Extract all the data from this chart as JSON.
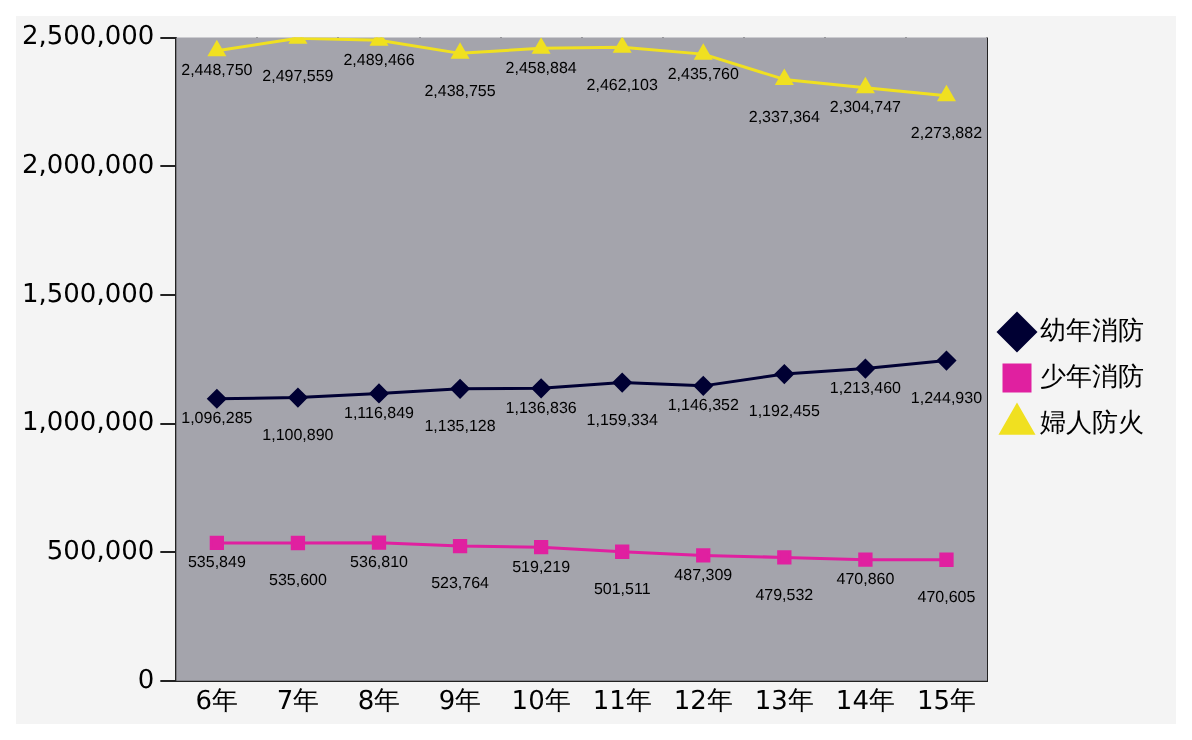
{
  "chart_data": {
    "type": "line",
    "categories": [
      "6年",
      "7年",
      "8年",
      "9年",
      "10年",
      "11年",
      "12年",
      "13年",
      "14年",
      "15年"
    ],
    "series": [
      {
        "name": "幼年消防",
        "color": "#000033",
        "marker": "diamond",
        "values": [
          1096285,
          1100890,
          1116849,
          1135128,
          1136836,
          1159334,
          1146352,
          1192455,
          1213460,
          1244930
        ],
        "value_labels": [
          "1,096,285",
          "1,100,890",
          "1,116,849",
          "1,135,128",
          "1,136,836",
          "1,159,334",
          "1,146,352",
          "1,192,455",
          "1,213,460",
          "1,244,930"
        ]
      },
      {
        "name": "少年消防",
        "color": "#e020a0",
        "marker": "square",
        "values": [
          535849,
          535600,
          536810,
          523764,
          519219,
          501511,
          487309,
          479532,
          470860,
          470605
        ],
        "value_labels": [
          "535,849",
          "535,600",
          "536,810",
          "523,764",
          "519,219",
          "501,511",
          "487,309",
          "479,532",
          "470,860",
          "470,605"
        ]
      },
      {
        "name": "婦人防火",
        "color": "#f0e020",
        "marker": "triangle",
        "values": [
          2448750,
          2497559,
          2489466,
          2438755,
          2458884,
          2462103,
          2435760,
          2337364,
          2304747,
          2273882
        ],
        "value_labels": [
          "2,448,750",
          "2,497,559",
          "2,489,466",
          "2,438,755",
          "2,458,884",
          "2,462,103",
          "2,435,760",
          "2,337,364",
          "2,304,747",
          "2,273,882"
        ]
      }
    ],
    "ylim": [
      0,
      2500000
    ],
    "yticks": [
      0,
      {
        "value": 500000,
        "label": "500,000"
      },
      {
        "value": 1000000,
        "label": "1,000,000"
      },
      {
        "value": 1500000,
        "label": "1,500,000"
      },
      {
        "value": 2000000,
        "label": "2,000,000"
      },
      {
        "value": 2500000,
        "label": "2,500,000"
      }
    ],
    "grid": "x",
    "legend": "right"
  }
}
